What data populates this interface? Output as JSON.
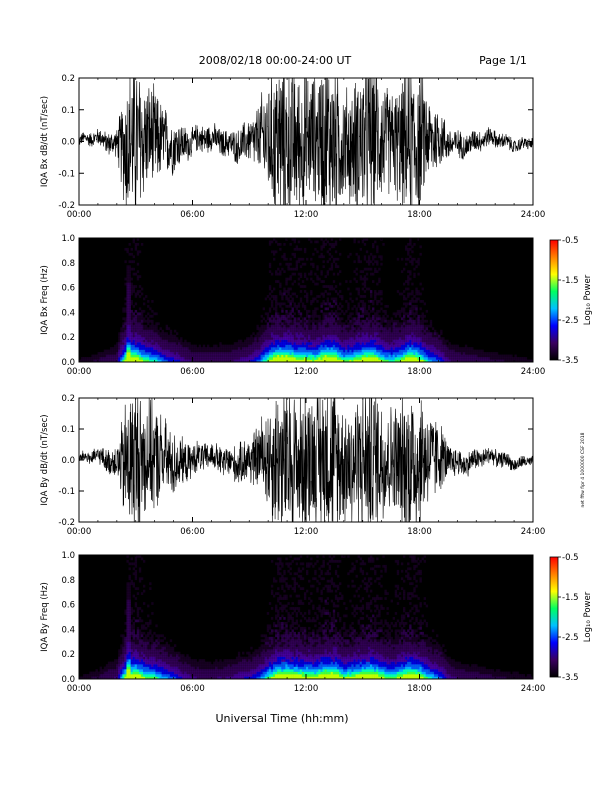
{
  "header": {
    "title": "2008/02/18  00:00-24:00 UT",
    "page": "Page 1/1"
  },
  "side_note": "net fftw fipr 4 1000000 CSF 2018",
  "xlabel": "Universal Time (hh:mm)",
  "colorbar": {
    "label": "Log₁₀ Power",
    "ticks": [
      "-0.5",
      "-1.5",
      "-2.5",
      "-3.5"
    ],
    "range": [
      -3.5,
      -0.5
    ],
    "colors": [
      "#000000",
      "#3a0060",
      "#0000ff",
      "#00c0ff",
      "#00ff60",
      "#ffff00",
      "#ff8000",
      "#ff0000"
    ]
  },
  "chart_data": [
    {
      "type": "line",
      "ylabel": "IQA Bx dB/dt (nT/sec)",
      "xlim": [
        0,
        24
      ],
      "ylim": [
        -0.2,
        0.2
      ],
      "x_ticks": [
        "00:00",
        "06:00",
        "12:00",
        "18:00",
        "24:00"
      ],
      "y_ticks": [
        "-0.2",
        "-0.1",
        "0.0",
        "0.1",
        "0.2"
      ],
      "envelope": {
        "hours": [
          0,
          1,
          2,
          2.5,
          3,
          3.5,
          4,
          4.5,
          5,
          5.5,
          6,
          7,
          8,
          9,
          9.5,
          10,
          10.5,
          11,
          11.5,
          12,
          12.5,
          13,
          13.5,
          14,
          14.5,
          15,
          15.5,
          16,
          16.5,
          17,
          17.5,
          18,
          18.5,
          19,
          19.5,
          20,
          21,
          22,
          23,
          24
        ],
        "amplitude": [
          0.02,
          0.03,
          0.05,
          0.25,
          0.3,
          0.2,
          0.18,
          0.12,
          0.1,
          0.07,
          0.05,
          0.05,
          0.05,
          0.08,
          0.12,
          0.22,
          0.3,
          0.3,
          0.26,
          0.25,
          0.22,
          0.3,
          0.3,
          0.2,
          0.22,
          0.28,
          0.3,
          0.22,
          0.18,
          0.22,
          0.3,
          0.25,
          0.15,
          0.12,
          0.06,
          0.05,
          0.04,
          0.03,
          0.025,
          0.02
        ]
      }
    },
    {
      "type": "heatmap",
      "ylabel": "IQA Bx Freq (Hz)",
      "xlim": [
        0,
        24
      ],
      "ylim": [
        0,
        1.0
      ],
      "x_ticks": [
        "00:00",
        "06:00",
        "12:00",
        "18:00",
        "24:00"
      ],
      "y_ticks": [
        "0.0",
        "0.2",
        "0.4",
        "0.6",
        "0.8",
        "1.0"
      ],
      "zlabel": "Log₁₀ Power",
      "zlim": [
        -3.5,
        -0.5
      ]
    },
    {
      "type": "line",
      "ylabel": "IQA By dB/dt (nT/sec)",
      "xlim": [
        0,
        24
      ],
      "ylim": [
        -0.2,
        0.2
      ],
      "x_ticks": [
        "00:00",
        "06:00",
        "12:00",
        "18:00",
        "24:00"
      ],
      "y_ticks": [
        "-0.2",
        "-0.1",
        "0.0",
        "0.1",
        "0.2"
      ],
      "envelope": {
        "hours": [
          0,
          1,
          2,
          2.5,
          3,
          3.5,
          4,
          4.5,
          5,
          5.5,
          6,
          7,
          8,
          9,
          9.5,
          10,
          10.5,
          11,
          11.5,
          12,
          12.5,
          13,
          13.5,
          14,
          14.5,
          15,
          15.5,
          16,
          16.5,
          17,
          17.5,
          18,
          18.5,
          19,
          19.5,
          20,
          21,
          22,
          23,
          24
        ],
        "amplitude": [
          0.02,
          0.03,
          0.06,
          0.25,
          0.3,
          0.22,
          0.2,
          0.15,
          0.12,
          0.08,
          0.06,
          0.05,
          0.06,
          0.09,
          0.12,
          0.2,
          0.28,
          0.3,
          0.27,
          0.26,
          0.24,
          0.3,
          0.3,
          0.22,
          0.24,
          0.28,
          0.3,
          0.24,
          0.2,
          0.24,
          0.3,
          0.26,
          0.18,
          0.14,
          0.07,
          0.05,
          0.04,
          0.03,
          0.025,
          0.02
        ]
      }
    },
    {
      "type": "heatmap",
      "ylabel": "IQA By Freq (Hz)",
      "xlim": [
        0,
        24
      ],
      "ylim": [
        0,
        1.0
      ],
      "x_ticks": [
        "00:00",
        "06:00",
        "12:00",
        "18:00",
        "24:00"
      ],
      "y_ticks": [
        "0.0",
        "0.2",
        "0.4",
        "0.6",
        "0.8",
        "1.0"
      ],
      "zlabel": "Log₁₀ Power",
      "zlim": [
        -3.5,
        -0.5
      ]
    }
  ]
}
